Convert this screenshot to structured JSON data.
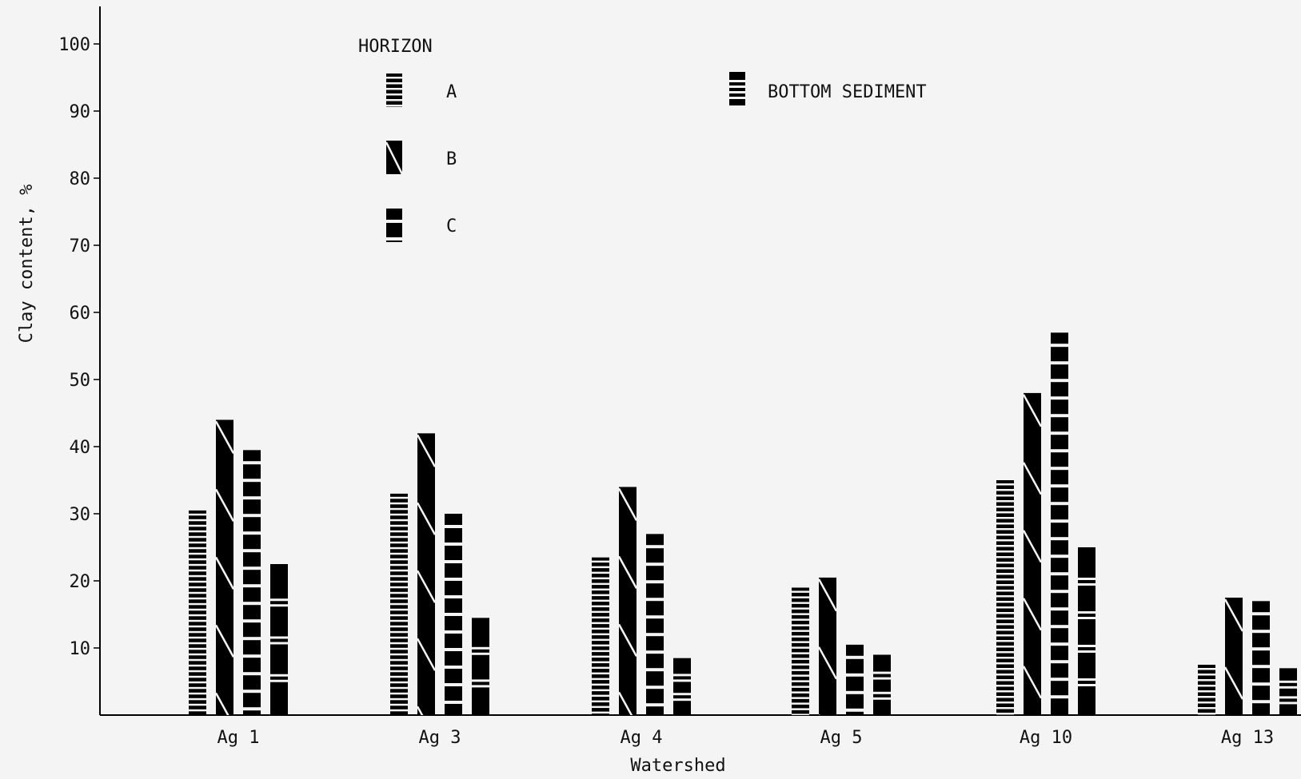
{
  "chart_data": {
    "type": "bar",
    "title": "",
    "xlabel": "Watershed",
    "ylabel": "Clay content, %",
    "ylim": [
      0,
      100
    ],
    "yticks": [
      10,
      20,
      30,
      40,
      50,
      60,
      70,
      80,
      90,
      100
    ],
    "grid": false,
    "legend_title": "HORIZON",
    "legend_position": "top",
    "categories": [
      "Ag 1",
      "Ag 3",
      "Ag 4",
      "Ag 5",
      "Ag 10",
      "Ag 13"
    ],
    "series": [
      {
        "name": "A",
        "pattern": "fine-horizontal-stripes",
        "values": [
          30.5,
          33,
          23.5,
          19,
          35,
          7.5
        ]
      },
      {
        "name": "B",
        "pattern": "diagonal",
        "values": [
          44,
          42,
          34,
          20.5,
          48,
          17.5
        ]
      },
      {
        "name": "C",
        "pattern": "coarse-horizontal-stripes",
        "values": [
          39.5,
          30,
          27,
          10.5,
          57,
          17
        ]
      },
      {
        "name": "BOTTOM SEDIMENT",
        "pattern": "sparse-horizontal-stripes",
        "values": [
          22.5,
          14.5,
          8.5,
          9,
          25,
          7
        ]
      }
    ],
    "colors": {
      "bar": "#000000",
      "background": "#f4f4f4",
      "stripe": "#f4f4f4"
    }
  }
}
